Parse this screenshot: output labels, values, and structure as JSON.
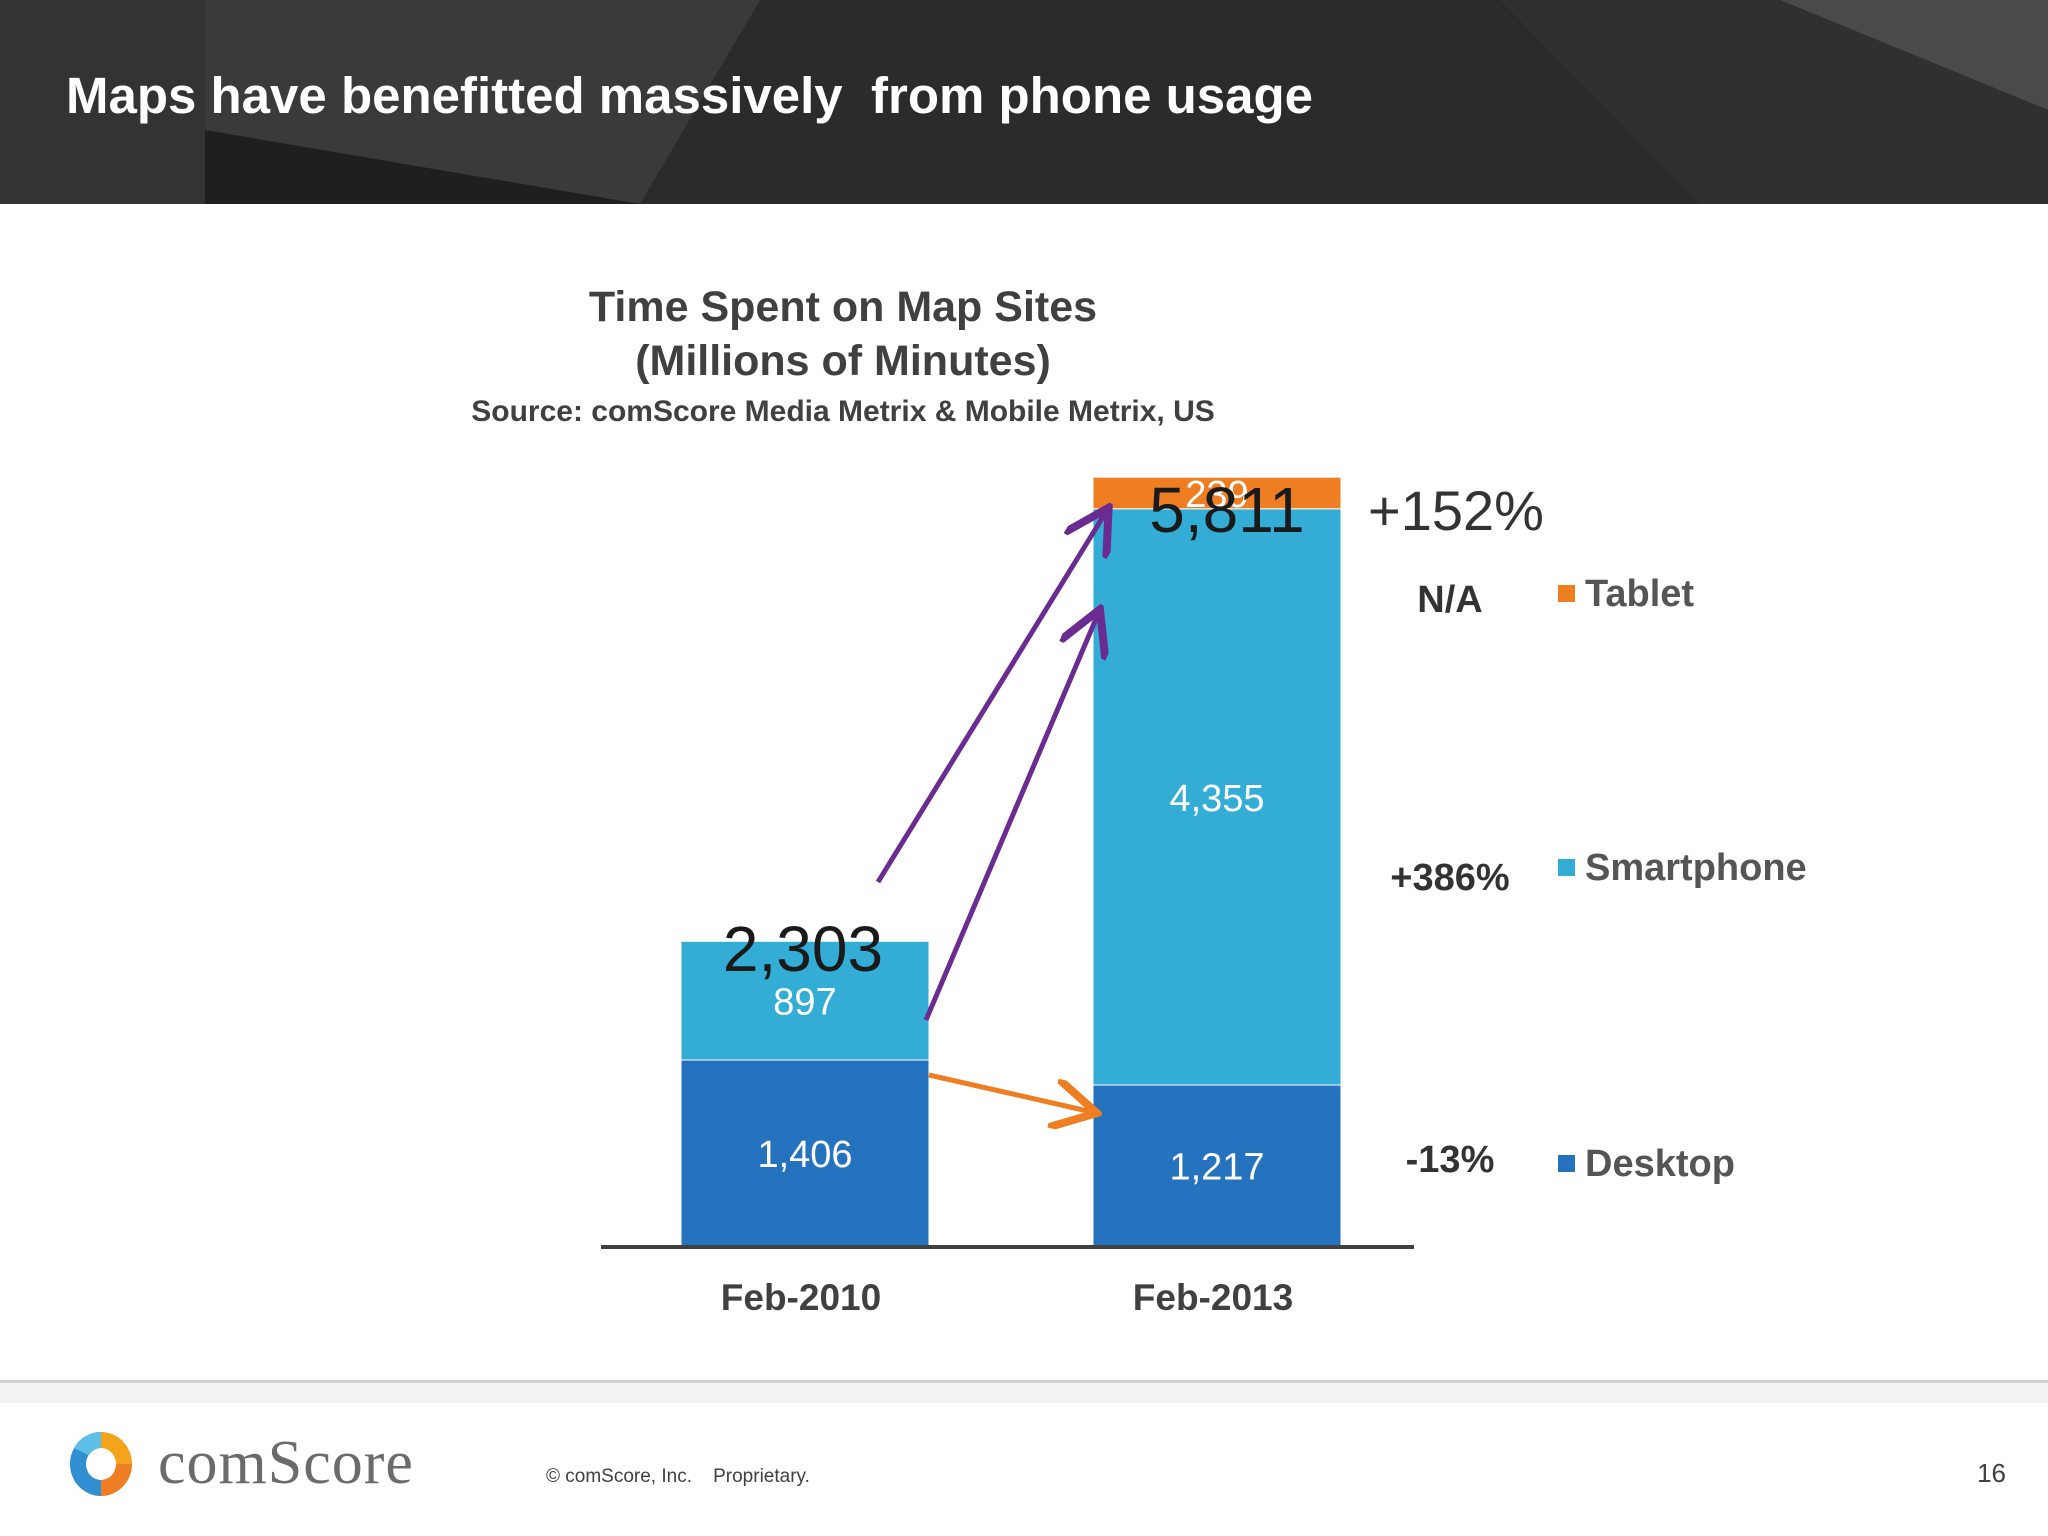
{
  "header": {
    "title": "Maps have benefitted massively  from phone usage"
  },
  "colors": {
    "header_bg": "#2b2b2b",
    "desktop": "#2573bf",
    "smartphone": "#33acd6",
    "tablet": "#ef7d22",
    "arrow_purple": "#6a2c91",
    "arrow_orange": "#ef7d22"
  },
  "chart_data": {
    "type": "bar",
    "stacked": true,
    "title": "Time Spent on Map Sites",
    "title_line2": "(Millions of Minutes)",
    "subtitle": "Source: comScore Media Metrix & Mobile Metrix, US",
    "categories": [
      "Feb-2010",
      "Feb-2013"
    ],
    "series": [
      {
        "name": "Desktop",
        "values": [
          1406,
          1217
        ],
        "value_labels": [
          "1,406",
          "1,217"
        ],
        "change": "-13%"
      },
      {
        "name": "Smartphone",
        "values": [
          897,
          4355
        ],
        "value_labels": [
          "897",
          "4,355"
        ],
        "change": "+386%"
      },
      {
        "name": "Tablet",
        "values": [
          0,
          239
        ],
        "value_labels": [
          "",
          "239"
        ],
        "change": "N/A"
      }
    ],
    "totals": [
      "2,303",
      "5,811"
    ],
    "total_change": "+152%",
    "legend_position": "right",
    "grid": false
  },
  "footer": {
    "logo_text": "comScore",
    "copyright": "© comScore, Inc.    Proprietary.",
    "page_number": "16"
  }
}
